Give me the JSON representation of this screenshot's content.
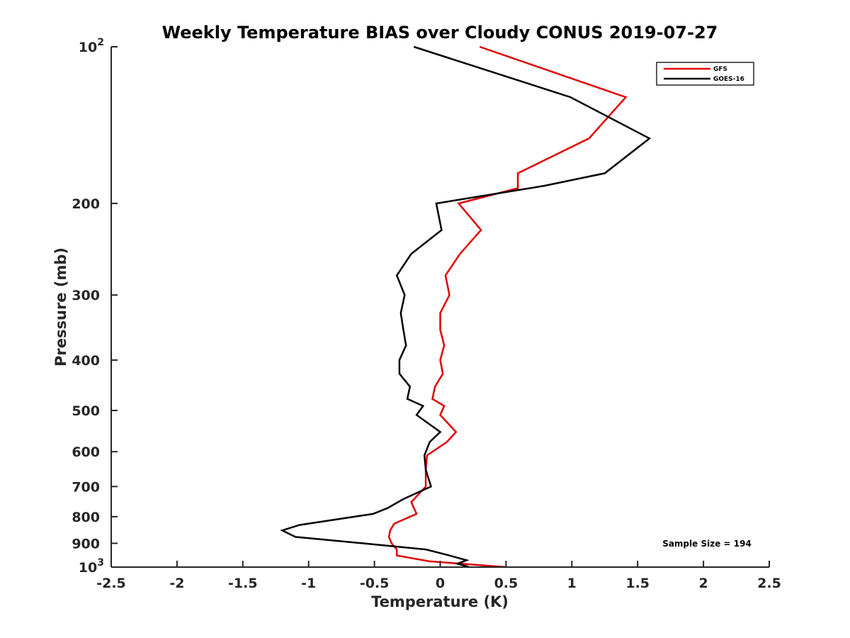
{
  "chart_data": {
    "type": "line",
    "title": "Weekly Temperature BIAS over Cloudy CONUS 2019-07-27",
    "xlabel": "Temperature (K)",
    "ylabel": "Pressure (mb)",
    "xlim": [
      -2.5,
      2.5
    ],
    "ylim": [
      100,
      1000
    ],
    "y_scale": "log",
    "y_reversed": true,
    "grid": false,
    "x_ticks": [
      "-2.5",
      "-2",
      "-1.5",
      "-1",
      "-0.5",
      "0",
      "0.5",
      "1",
      "1.5",
      "2",
      "2.5"
    ],
    "y_ticks": [
      {
        "value": 100,
        "base": "10",
        "exp": "2"
      },
      {
        "value": 200,
        "label": "200"
      },
      {
        "value": 300,
        "label": "300"
      },
      {
        "value": 400,
        "label": "400"
      },
      {
        "value": 500,
        "label": "500"
      },
      {
        "value": 600,
        "label": "600"
      },
      {
        "value": 700,
        "label": "700"
      },
      {
        "value": 800,
        "label": "800"
      },
      {
        "value": 900,
        "label": "900"
      },
      {
        "value": 1000,
        "base": "10",
        "exp": "3"
      }
    ],
    "legend_position": "top-right",
    "annotation": "Sample Size = 194",
    "series": [
      {
        "name": "GFS",
        "color": "#e00000",
        "points": [
          [
            0.3,
            100
          ],
          [
            1.41,
            125
          ],
          [
            1.13,
            150
          ],
          [
            0.59,
            175
          ],
          [
            0.59,
            187
          ],
          [
            0.14,
            200
          ],
          [
            0.31,
            225
          ],
          [
            0.15,
            250
          ],
          [
            0.04,
            275
          ],
          [
            0.07,
            300
          ],
          [
            0.0,
            325
          ],
          [
            0.0,
            350
          ],
          [
            0.03,
            375
          ],
          [
            0.0,
            400
          ],
          [
            0.02,
            425
          ],
          [
            -0.04,
            450
          ],
          [
            -0.06,
            475
          ],
          [
            0.03,
            490
          ],
          [
            0.0,
            510
          ],
          [
            0.12,
            550
          ],
          [
            0.05,
            575
          ],
          [
            -0.1,
            610
          ],
          [
            -0.11,
            650
          ],
          [
            -0.11,
            700
          ],
          [
            -0.22,
            750
          ],
          [
            -0.18,
            790
          ],
          [
            -0.35,
            825
          ],
          [
            -0.38,
            850
          ],
          [
            -0.39,
            875
          ],
          [
            -0.37,
            900
          ],
          [
            -0.33,
            925
          ],
          [
            -0.33,
            950
          ],
          [
            -0.08,
            975
          ],
          [
            0.5,
            1000
          ]
        ]
      },
      {
        "name": "GOES-16",
        "color": "#000000",
        "points": [
          [
            -0.2,
            100
          ],
          [
            0.99,
            125
          ],
          [
            1.59,
            150
          ],
          [
            1.25,
            175
          ],
          [
            0.79,
            185
          ],
          [
            -0.03,
            200
          ],
          [
            0.01,
            225
          ],
          [
            -0.22,
            250
          ],
          [
            -0.33,
            275
          ],
          [
            -0.27,
            300
          ],
          [
            -0.3,
            325
          ],
          [
            -0.28,
            350
          ],
          [
            -0.26,
            375
          ],
          [
            -0.31,
            400
          ],
          [
            -0.31,
            425
          ],
          [
            -0.23,
            450
          ],
          [
            -0.25,
            475
          ],
          [
            -0.13,
            490
          ],
          [
            -0.18,
            510
          ],
          [
            0.0,
            550
          ],
          [
            -0.08,
            575
          ],
          [
            -0.12,
            610
          ],
          [
            -0.11,
            650
          ],
          [
            -0.07,
            700
          ],
          [
            -0.28,
            740
          ],
          [
            -0.4,
            770
          ],
          [
            -0.51,
            790
          ],
          [
            -1.07,
            830
          ],
          [
            -1.2,
            850
          ],
          [
            -1.1,
            875
          ],
          [
            -0.59,
            900
          ],
          [
            -0.11,
            925
          ],
          [
            0.07,
            950
          ],
          [
            0.2,
            970
          ],
          [
            0.13,
            985
          ],
          [
            0.22,
            1000
          ]
        ]
      }
    ]
  }
}
